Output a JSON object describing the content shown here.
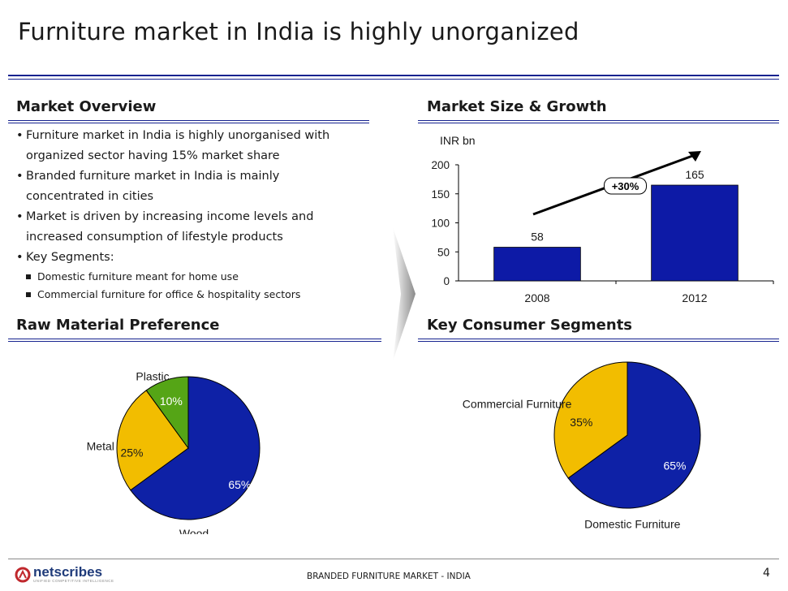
{
  "page": {
    "title": "Furniture market in India is highly unorganized",
    "page_number": "4",
    "footer": "BRANDED FURNITURE MARKET - INDIA",
    "logo": "netscribes",
    "logo_tagline": "UNIFIED COMPETITIVE INTELLIGENCE",
    "colors": {
      "navy": "#15228f",
      "bar": "#0d1aa6",
      "pie_blue": "#0e21a6",
      "pie_yellow": "#f2bd00",
      "pie_green": "#55a516"
    }
  },
  "market_overview": {
    "heading": "Market Overview",
    "bullets": [
      {
        "line1": "Furniture market in India is highly unorganised with",
        "line2": "organized sector having 15% market share"
      },
      {
        "line1": "Branded furniture market in India is mainly",
        "line2": "concentrated in cities"
      },
      {
        "line1": "Market is driven by increasing income levels and",
        "line2": "increased consumption of lifestyle products"
      },
      {
        "line1": "Key Segments:"
      }
    ],
    "sub_bullets": [
      "Domestic furniture meant for home use",
      "Commercial furniture for office & hospitality sectors"
    ]
  },
  "raw_material": {
    "heading": "Raw Material Preference"
  },
  "market_size": {
    "heading": "Market Size & Growth"
  },
  "consumer_segments": {
    "heading": "Key Consumer Segments"
  },
  "chart_data": [
    {
      "type": "bar",
      "title": "Market Size & Growth",
      "ylabel": "INR bn",
      "categories": [
        "2008",
        "2012"
      ],
      "values": [
        58,
        165
      ],
      "data_labels": [
        "58",
        "165"
      ],
      "ylim": [
        0,
        200
      ],
      "yticks": [
        "0",
        "50",
        "100",
        "150",
        "200"
      ],
      "annotation": "+30%",
      "grid": false
    },
    {
      "type": "pie",
      "title": "Raw Material Preference",
      "labels": [
        "Wood",
        "Metal",
        "Plastic"
      ],
      "values": [
        65,
        25,
        10
      ],
      "data_labels": [
        "65%",
        "25%",
        "10%"
      ]
    },
    {
      "type": "pie",
      "title": "Key Consumer Segments",
      "labels": [
        "Domestic Furniture",
        "Commercial Furniture"
      ],
      "values": [
        65,
        35
      ],
      "data_labels": [
        "65%",
        "35%"
      ]
    }
  ]
}
